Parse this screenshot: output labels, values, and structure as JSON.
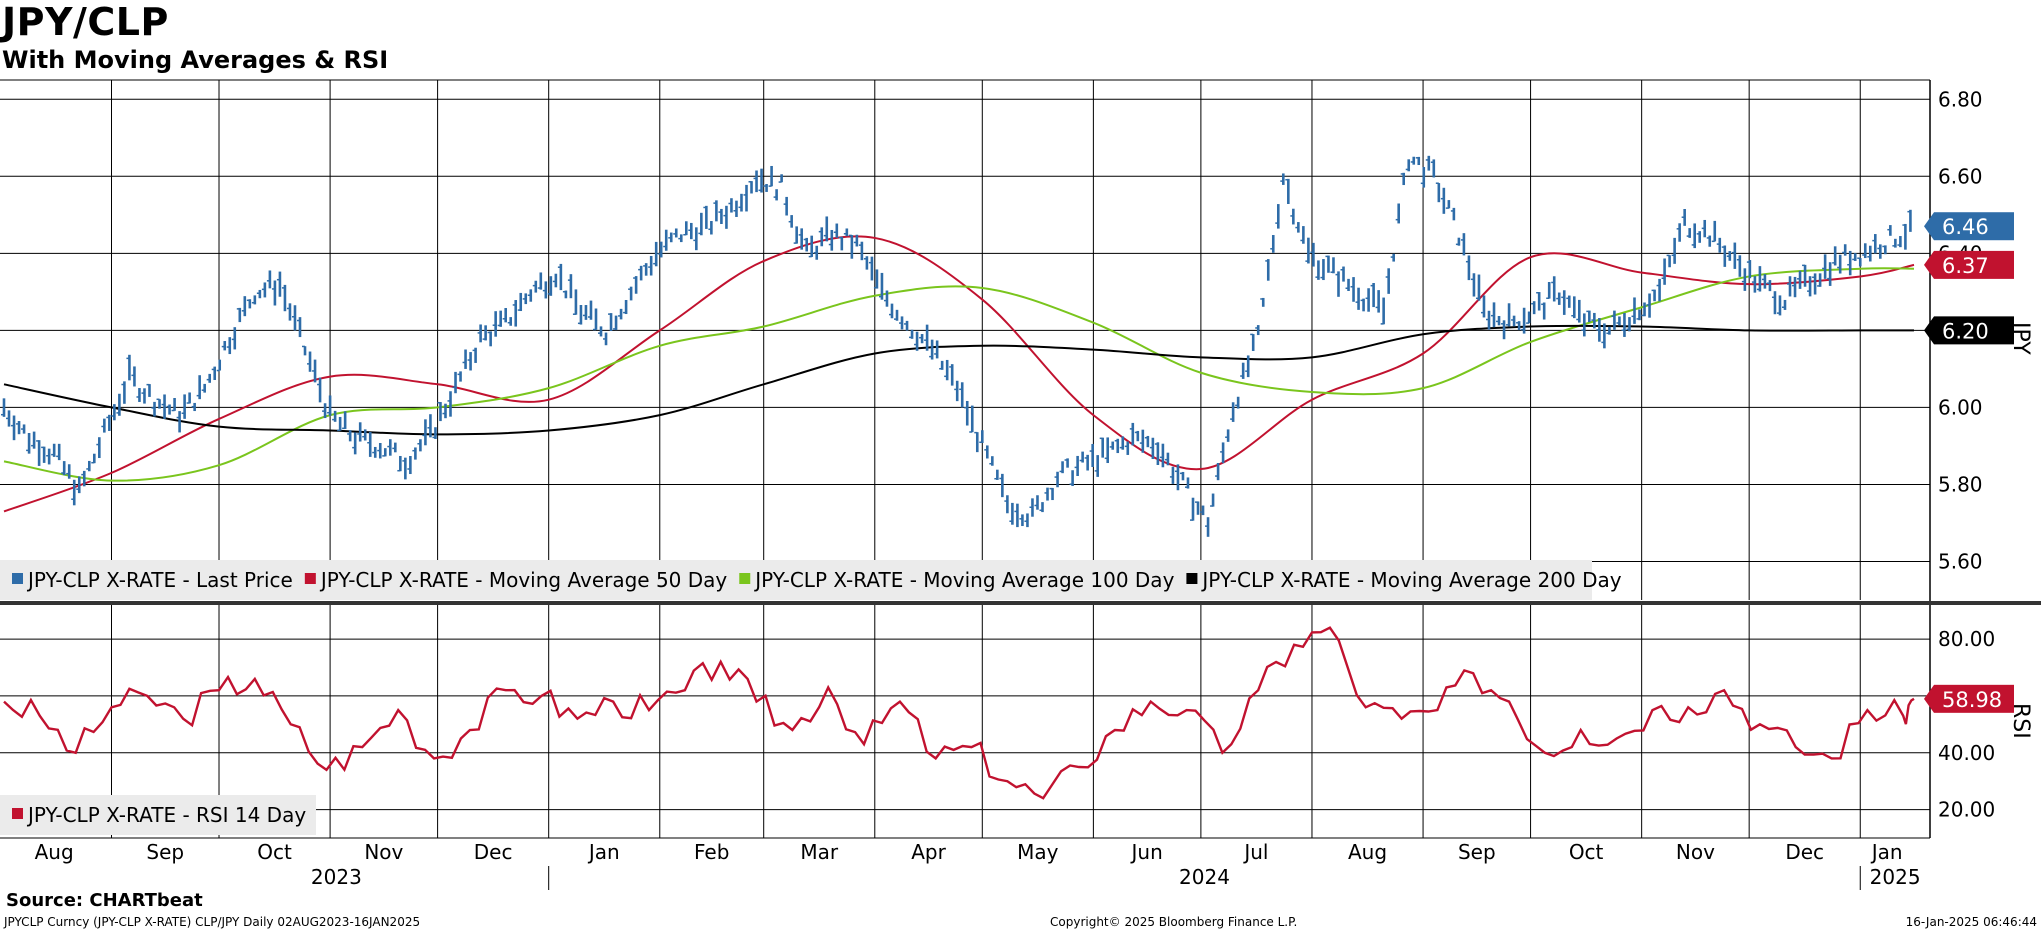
{
  "header": {
    "title": "JPY/CLP",
    "subtitle": "With Moving Averages & RSI"
  },
  "footer": {
    "source": "Source: CHARTbeat",
    "security": "JPYCLP Curncy (JPY-CLP X-RATE) CLP/JPY  Daily 02AUG2023-16JAN2025",
    "copyright": "Copyright© 2025 Bloomberg Finance L.P.",
    "timestamp": "16-Jan-2025 06:46:44"
  },
  "colors": {
    "price": "#2e6ca8",
    "ma50": "#c1122f",
    "ma100": "#7ac51d",
    "ma200": "#000000",
    "rsi": "#c1122f",
    "grid": "#000000"
  },
  "chart_data": [
    {
      "type": "line",
      "ylabel": "JPY",
      "ylim": [
        5.5,
        6.85
      ],
      "yticks": [
        "6.80",
        "6.60",
        "6.40",
        "6.20",
        "6.00",
        "5.80",
        "5.60"
      ],
      "x_range": [
        "2023-08-02",
        "2025-01-16"
      ],
      "month_labels": [
        "Aug",
        "Sep",
        "Oct",
        "Nov",
        "Dec",
        "Jan",
        "Feb",
        "Mar",
        "Apr",
        "May",
        "Jun",
        "Jul",
        "Aug",
        "Sep",
        "Oct",
        "Nov",
        "Dec",
        "Jan"
      ],
      "year_labels": [
        "2023",
        "2024",
        "2025"
      ],
      "legend": [
        "JPY-CLP X-RATE - Last Price",
        "JPY-CLP X-RATE - Moving Average 50 Day",
        "JPY-CLP X-RATE - Moving Average 100 Day",
        "JPY-CLP X-RATE - Moving Average 200 Day"
      ],
      "last_values": {
        "price": "6.46",
        "ma50": "6.37",
        "ma100": "6.36",
        "ma200": "6.20"
      },
      "price_x": [
        "2023-08-02",
        "2023-08-09",
        "2023-08-16",
        "2023-08-23",
        "2023-08-30",
        "2023-09-06",
        "2023-09-13",
        "2023-09-20",
        "2023-09-27",
        "2023-10-04",
        "2023-10-11",
        "2023-10-18",
        "2023-10-25",
        "2023-11-01",
        "2023-11-08",
        "2023-11-15",
        "2023-11-22",
        "2023-11-29",
        "2023-12-06",
        "2023-12-13",
        "2023-12-20",
        "2023-12-27",
        "2024-01-03",
        "2024-01-10",
        "2024-01-17",
        "2024-01-24",
        "2024-01-31",
        "2024-02-07",
        "2024-02-14",
        "2024-02-21",
        "2024-02-28",
        "2024-03-06",
        "2024-03-13",
        "2024-03-20",
        "2024-03-27",
        "2024-04-03",
        "2024-04-10",
        "2024-04-17",
        "2024-04-24",
        "2024-05-01",
        "2024-05-08",
        "2024-05-15",
        "2024-05-22",
        "2024-05-29",
        "2024-06-05",
        "2024-06-12",
        "2024-06-19",
        "2024-06-26",
        "2024-07-03",
        "2024-07-10",
        "2024-07-17",
        "2024-07-24",
        "2024-07-31",
        "2024-08-07",
        "2024-08-14",
        "2024-08-21",
        "2024-08-28",
        "2024-09-04",
        "2024-09-11",
        "2024-09-18",
        "2024-09-25",
        "2024-10-02",
        "2024-10-09",
        "2024-10-16",
        "2024-10-23",
        "2024-10-30",
        "2024-11-06",
        "2024-11-13",
        "2024-11-20",
        "2024-11-27",
        "2024-12-04",
        "2024-12-11",
        "2024-12-18",
        "2024-12-25",
        "2025-01-01",
        "2025-01-08",
        "2025-01-15"
      ],
      "price": [
        6.0,
        5.92,
        5.88,
        5.78,
        5.93,
        6.08,
        6.02,
        5.98,
        6.05,
        6.18,
        6.3,
        6.32,
        6.15,
        5.98,
        5.92,
        5.9,
        5.86,
        5.93,
        6.05,
        6.18,
        6.22,
        6.3,
        6.35,
        6.25,
        6.2,
        6.3,
        6.4,
        6.45,
        6.47,
        6.52,
        6.6,
        6.57,
        6.4,
        6.45,
        6.42,
        6.3,
        6.22,
        6.15,
        6.05,
        5.9,
        5.75,
        5.72,
        5.82,
        5.85,
        5.88,
        5.92,
        5.9,
        5.8,
        5.7,
        6.0,
        6.18,
        6.6,
        6.4,
        6.35,
        6.3,
        6.25,
        6.65,
        6.6,
        6.45,
        6.25,
        6.22,
        6.25,
        6.3,
        6.22,
        6.2,
        6.25,
        6.3,
        6.48,
        6.45,
        6.38,
        6.32,
        6.28,
        6.33,
        6.38,
        6.4,
        6.43,
        6.46
      ],
      "series": [
        {
          "name": "JPY-CLP X-RATE - Moving Average 50 Day",
          "x": [
            "2023-08-02",
            "2023-09-01",
            "2023-10-01",
            "2023-11-01",
            "2023-12-01",
            "2024-01-01",
            "2024-02-01",
            "2024-03-01",
            "2024-04-01",
            "2024-05-01",
            "2024-06-01",
            "2024-07-01",
            "2024-08-01",
            "2024-09-01",
            "2024-10-01",
            "2024-11-01",
            "2024-12-01",
            "2025-01-01",
            "2025-01-16"
          ],
          "values": [
            5.73,
            5.83,
            5.97,
            6.08,
            6.06,
            6.02,
            6.2,
            6.38,
            6.44,
            6.28,
            5.98,
            5.84,
            6.02,
            6.14,
            6.39,
            6.35,
            6.32,
            6.34,
            6.37
          ]
        },
        {
          "name": "JPY-CLP X-RATE - Moving Average 100 Day",
          "x": [
            "2023-08-02",
            "2023-09-01",
            "2023-10-01",
            "2023-11-01",
            "2023-12-01",
            "2024-01-01",
            "2024-02-01",
            "2024-03-01",
            "2024-04-01",
            "2024-05-01",
            "2024-06-01",
            "2024-07-01",
            "2024-08-01",
            "2024-09-01",
            "2024-10-01",
            "2024-11-01",
            "2024-12-01",
            "2025-01-01",
            "2025-01-16"
          ],
          "values": [
            5.86,
            5.81,
            5.85,
            5.98,
            6.0,
            6.05,
            6.16,
            6.21,
            6.29,
            6.31,
            6.22,
            6.09,
            6.04,
            6.05,
            6.17,
            6.26,
            6.34,
            6.36,
            6.36
          ]
        },
        {
          "name": "JPY-CLP X-RATE - Moving Average 200 Day",
          "x": [
            "2023-08-02",
            "2023-09-01",
            "2023-10-01",
            "2023-11-01",
            "2023-12-01",
            "2024-01-01",
            "2024-02-01",
            "2024-03-01",
            "2024-04-01",
            "2024-05-01",
            "2024-06-01",
            "2024-07-01",
            "2024-08-01",
            "2024-09-01",
            "2024-10-01",
            "2024-11-01",
            "2024-12-01",
            "2025-01-01",
            "2025-01-16"
          ],
          "values": [
            6.06,
            6.0,
            5.95,
            5.94,
            5.93,
            5.94,
            5.98,
            6.06,
            6.14,
            6.16,
            6.15,
            6.13,
            6.13,
            6.19,
            6.21,
            6.21,
            6.2,
            6.2,
            6.2
          ]
        }
      ]
    },
    {
      "type": "line",
      "ylabel": "RSI",
      "ylim": [
        10,
        92
      ],
      "yticks": [
        "80.00",
        "60.00",
        "40.00",
        "20.00"
      ],
      "legend": [
        "JPY-CLP X-RATE - RSI 14 Day"
      ],
      "last_value": "58.98",
      "x": [
        "2023-08-02",
        "2023-08-12",
        "2023-08-22",
        "2023-09-01",
        "2023-09-11",
        "2023-09-21",
        "2023-10-01",
        "2023-10-11",
        "2023-10-21",
        "2023-10-31",
        "2023-11-10",
        "2023-11-20",
        "2023-11-30",
        "2023-12-10",
        "2023-12-20",
        "2023-12-30",
        "2024-01-09",
        "2024-01-19",
        "2024-01-29",
        "2024-02-08",
        "2024-02-18",
        "2024-02-28",
        "2024-03-09",
        "2024-03-19",
        "2024-03-29",
        "2024-04-08",
        "2024-04-18",
        "2024-04-28",
        "2024-05-08",
        "2024-05-18",
        "2024-05-28",
        "2024-06-07",
        "2024-06-17",
        "2024-06-27",
        "2024-07-07",
        "2024-07-17",
        "2024-07-27",
        "2024-08-06",
        "2024-08-16",
        "2024-08-26",
        "2024-09-05",
        "2024-09-15",
        "2024-09-25",
        "2024-10-05",
        "2024-10-15",
        "2024-10-25",
        "2024-11-04",
        "2024-11-14",
        "2024-11-24",
        "2024-12-04",
        "2024-12-14",
        "2024-12-24",
        "2025-01-03",
        "2025-01-13",
        "2025-01-16"
      ],
      "values": [
        58,
        53,
        40,
        56,
        60,
        52,
        62,
        66,
        50,
        34,
        42,
        55,
        38,
        48,
        62,
        60,
        52,
        58,
        55,
        62,
        72,
        58,
        48,
        63,
        43,
        58,
        38,
        42,
        30,
        24,
        35,
        48,
        58,
        55,
        40,
        62,
        78,
        84,
        56,
        52,
        55,
        68,
        58,
        40,
        48,
        45,
        55,
        56,
        62,
        50,
        42,
        38,
        55,
        53,
        59
      ]
    }
  ]
}
